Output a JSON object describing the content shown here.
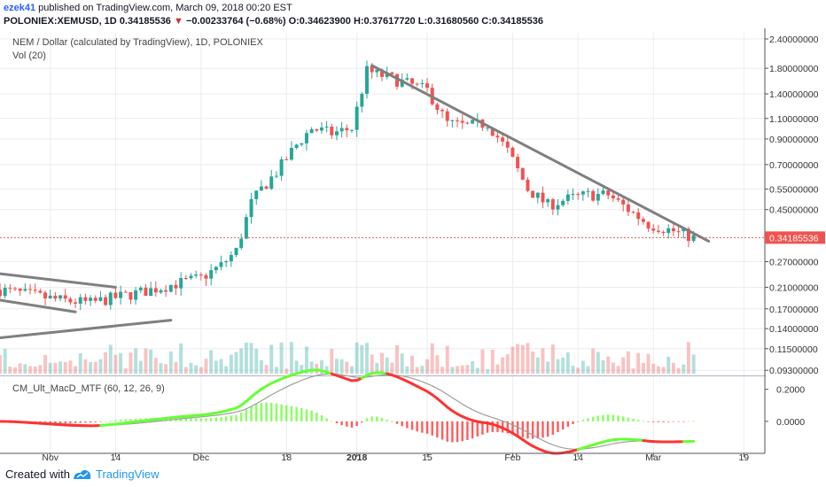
{
  "header": {
    "author": "ezek41",
    "published_text": "published on TradingView.com, March 09, 2018 00:20 EST",
    "symbol": "POLONIEX:XEMUSD, 1D",
    "last_price": "0.34185536",
    "change_arrow": "▼",
    "change": "−0.00233764 (−0.68%)",
    "ohlc": "O:0.34623900 H:0.37617720 L:0.31680560 C:0.34185536"
  },
  "chart_data": {
    "type": "candlestick",
    "title": "NEM / Dollar (calculated by TradingView), 1D, POLONIEX",
    "volume_label": "Vol (20)",
    "indicator_label": "CM_Ult_MacD_MTF (60, 12, 26, 9)",
    "y_axis_scale": "log",
    "ylim": [
      0.09,
      2.55
    ],
    "y_ticks": [
      "2.40000000",
      "1.80000000",
      "1.40000000",
      "1.10000000",
      "0.90000000",
      "0.70000000",
      "0.55000000",
      "0.45000000",
      "0.34185536",
      "0.27000000",
      "0.21000000",
      "0.17000000",
      "0.14000000",
      "0.11500000",
      "0.09300000"
    ],
    "y_tick_values": [
      2.4,
      1.8,
      1.4,
      1.1,
      0.9,
      0.7,
      0.55,
      0.45,
      0.34185536,
      0.27,
      0.21,
      0.17,
      0.14,
      0.115,
      0.093
    ],
    "current_price": 0.34185536,
    "x_ticks": [
      "Nov",
      "14",
      "Dec",
      "18",
      "2018",
      "15",
      "Feb",
      "14",
      "Mar",
      "19"
    ],
    "x_tick_dates": [
      "2017-11-01",
      "2017-11-14",
      "2017-12-01",
      "2017-12-18",
      "2018-01-01",
      "2018-01-15",
      "2018-02-01",
      "2018-02-14",
      "2018-03-01",
      "2018-03-19"
    ],
    "macd_ticks": [
      "0.2000",
      "0.0000"
    ],
    "macd_tick_values": [
      0.2,
      0.0
    ],
    "macd_ylim": [
      -0.2,
      0.27
    ],
    "price_close_series": [
      {
        "date": "2017-10-22",
        "close": 0.205
      },
      {
        "date": "2017-10-28",
        "close": 0.195
      },
      {
        "date": "2017-11-03",
        "close": 0.185
      },
      {
        "date": "2017-11-09",
        "close": 0.18
      },
      {
        "date": "2017-11-14",
        "close": 0.19
      },
      {
        "date": "2017-11-19",
        "close": 0.2
      },
      {
        "date": "2017-11-25",
        "close": 0.215
      },
      {
        "date": "2017-12-01",
        "close": 0.23
      },
      {
        "date": "2017-12-05",
        "close": 0.26
      },
      {
        "date": "2017-12-08",
        "close": 0.3
      },
      {
        "date": "2017-12-11",
        "close": 0.48
      },
      {
        "date": "2017-12-13",
        "close": 0.55
      },
      {
        "date": "2017-12-16",
        "close": 0.65
      },
      {
        "date": "2017-12-20",
        "close": 0.85
      },
      {
        "date": "2017-12-23",
        "close": 1.0
      },
      {
        "date": "2017-12-27",
        "close": 0.95
      },
      {
        "date": "2017-12-31",
        "close": 1.0
      },
      {
        "date": "2018-01-03",
        "close": 1.75
      },
      {
        "date": "2018-01-07",
        "close": 1.65
      },
      {
        "date": "2018-01-11",
        "close": 1.55
      },
      {
        "date": "2018-01-15",
        "close": 1.45
      },
      {
        "date": "2018-01-19",
        "close": 1.05
      },
      {
        "date": "2018-01-23",
        "close": 1.02
      },
      {
        "date": "2018-01-27",
        "close": 1.05
      },
      {
        "date": "2018-01-31",
        "close": 0.8
      },
      {
        "date": "2018-02-04",
        "close": 0.55
      },
      {
        "date": "2018-02-08",
        "close": 0.47
      },
      {
        "date": "2018-02-12",
        "close": 0.5
      },
      {
        "date": "2018-02-16",
        "close": 0.52
      },
      {
        "date": "2018-02-20",
        "close": 0.52
      },
      {
        "date": "2018-02-24",
        "close": 0.45
      },
      {
        "date": "2018-02-28",
        "close": 0.39
      },
      {
        "date": "2018-03-04",
        "close": 0.37
      },
      {
        "date": "2018-03-09",
        "close": 0.34185536
      }
    ],
    "trendlines": [
      {
        "name": "descending resistance",
        "from": {
          "date": "2018-01-04",
          "value": 1.85
        },
        "to": {
          "date": "2018-03-12",
          "value": 0.33
        }
      },
      {
        "name": "wedge upper",
        "from": {
          "date": "2017-10-22",
          "value": 0.24
        },
        "to": {
          "date": "2017-11-14",
          "value": 0.21
        }
      },
      {
        "name": "wedge lower",
        "from": {
          "date": "2017-10-22",
          "value": 0.185
        },
        "to": {
          "date": "2017-11-06",
          "value": 0.165
        }
      },
      {
        "name": "wedge base",
        "from": {
          "date": "2017-10-22",
          "value": 0.128
        },
        "to": {
          "date": "2017-11-25",
          "value": 0.152
        }
      }
    ]
  },
  "footer": {
    "created_with": "Created with",
    "brand": "TradingView"
  },
  "colors": {
    "up": "#26a69a",
    "up_bright": "#4caf50",
    "down": "#ef5350",
    "trendline": "#7f7f7f",
    "grid": "#e9ecf1",
    "macd_green": "#66ff33",
    "macd_red": "#ff3333",
    "signal": "#9e9e9e"
  }
}
